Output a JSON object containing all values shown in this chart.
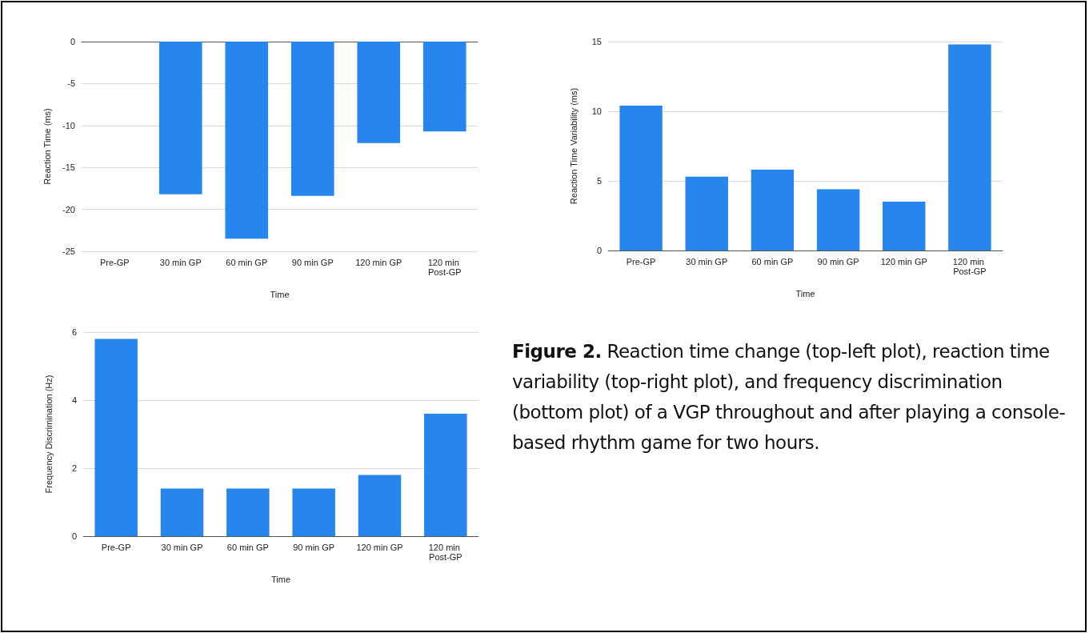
{
  "chart_data": [
    {
      "type": "bar",
      "categories": [
        "Pre-GP",
        "30 min GP",
        "60 min GP",
        "90 min GP",
        "120 min GP",
        "120 min Post-GP"
      ],
      "xlabel": "Time",
      "ylabel": "Reaction Time (ms)",
      "values": [
        0,
        -18.2,
        -23.5,
        -18.4,
        -12.1,
        -10.7
      ],
      "color": "#2786ec",
      "ylim": [
        -25,
        0
      ],
      "yticks": [
        -25,
        -20,
        -15,
        -10,
        -5,
        0
      ],
      "grid": "y"
    },
    {
      "type": "bar",
      "categories": [
        "Pre-GP",
        "30 min GP",
        "60 min GP",
        "90 min GP",
        "120 min GP",
        "120 min Post-GP"
      ],
      "xlabel": "Time",
      "ylabel": "Reaction Time Variability (ms)",
      "values": [
        10.4,
        5.3,
        5.8,
        4.4,
        3.5,
        14.8
      ],
      "color": "#2786ec",
      "ylim": [
        0,
        15
      ],
      "yticks": [
        0,
        5,
        10,
        15
      ],
      "grid": "y"
    },
    {
      "type": "bar",
      "categories": [
        "Pre-GP",
        "30 min GP",
        "60 min GP",
        "90 min GP",
        "120 min GP",
        "120 min Post-GP"
      ],
      "xlabel": "Time",
      "ylabel": "Frequency Discrimination (Hz)",
      "values": [
        5.8,
        1.4,
        1.4,
        1.4,
        1.8,
        3.6
      ],
      "color": "#2786ec",
      "ylim": [
        0,
        6
      ],
      "yticks": [
        0,
        2,
        4,
        6
      ],
      "grid": "y"
    },
    {
      "type": "other",
      "title": "Figure 2.",
      "subtitle": "Reaction time change (top-left plot), reaction time variability (top-right plot), and frequency discrimination (bottom plot) of a VGP throughout and after playing a console-based rhythm game for two hours."
    }
  ]
}
